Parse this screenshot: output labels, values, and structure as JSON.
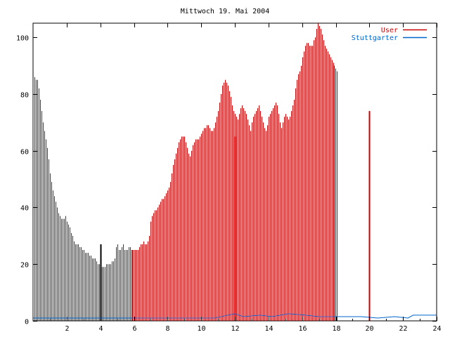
{
  "chart_data": {
    "type": "bar",
    "title": "Mittwoch 19. Mai 2004",
    "xlabel": "",
    "ylabel": "",
    "xlim": [
      0,
      24
    ],
    "ylim": [
      0,
      105
    ],
    "xticks": [
      2,
      4,
      6,
      8,
      10,
      12,
      14,
      16,
      18,
      20,
      22,
      24
    ],
    "yticks": [
      0,
      20,
      40,
      60,
      80,
      100
    ],
    "grid": false,
    "legend_position": "top-right",
    "colors": {
      "user": "#cc0000",
      "stuttgarter": "#0066cc",
      "axis": "#000000"
    },
    "series": [
      {
        "name": "User",
        "kind": "bars",
        "step_minutes": 5,
        "start_hour": 0.083,
        "values": [
          86,
          85,
          85,
          82,
          78,
          74,
          70,
          67,
          64,
          61,
          57,
          52,
          49,
          46,
          44,
          42,
          40,
          38,
          37,
          36,
          36,
          36,
          37,
          35,
          34,
          33,
          31,
          30,
          28,
          27,
          27,
          27,
          26,
          26,
          25,
          25,
          24,
          24,
          24,
          23,
          23,
          22,
          22,
          22,
          21,
          20,
          20,
          19,
          19,
          19,
          19,
          20,
          20,
          20,
          20,
          21,
          21,
          22,
          26,
          27,
          25,
          25,
          26,
          27,
          25,
          25,
          25,
          26,
          26,
          25,
          25,
          25,
          25,
          25,
          25,
          26,
          27,
          27,
          28,
          27,
          27,
          28,
          30,
          35,
          37,
          38,
          39,
          39,
          40,
          41,
          42,
          43,
          43,
          44,
          45,
          46,
          47,
          49,
          52,
          55,
          57,
          59,
          61,
          63,
          64,
          65,
          65,
          65,
          63,
          61,
          59,
          58,
          60,
          62,
          63,
          64,
          64,
          64,
          65,
          66,
          67,
          68,
          68,
          69,
          69,
          68,
          67,
          67,
          68,
          70,
          72,
          74,
          77,
          80,
          83,
          84,
          85,
          84,
          83,
          81,
          79,
          76,
          74,
          73,
          72,
          71,
          73,
          75,
          76,
          75,
          74,
          73,
          71,
          69,
          67,
          70,
          72,
          73,
          74,
          75,
          76,
          74,
          72,
          70,
          68,
          67,
          69,
          72,
          73,
          74,
          75,
          76,
          77,
          76,
          73,
          70,
          68,
          70,
          72,
          73,
          72,
          71,
          72,
          74,
          76,
          78,
          82,
          85,
          87,
          88,
          90,
          93,
          95,
          97,
          98,
          98,
          97,
          97,
          97,
          99,
          100,
          103,
          105,
          104,
          103,
          101,
          99,
          97,
          96,
          95,
          94,
          93,
          92,
          91,
          90,
          89,
          88
        ]
      },
      {
        "name": "Stuttgarter",
        "kind": "line",
        "x": [
          0,
          10.8,
          11.2,
          12.0,
          12.5,
          13.5,
          14.2,
          15.2,
          16.2,
          17.0,
          19.5,
          20.5,
          21.5,
          22.3,
          22.6,
          24
        ],
        "values": [
          1,
          1,
          1.5,
          2.5,
          1.5,
          2,
          1.5,
          2.5,
          2,
          1.5,
          1.5,
          1,
          1.5,
          1,
          2,
          2
        ]
      }
    ],
    "markers": [
      {
        "x": 4,
        "value": 27,
        "color": "#000000"
      },
      {
        "x": 12,
        "value": 65,
        "color": "#cc0000"
      },
      {
        "x": 20,
        "value": 74,
        "color": "#cc0000"
      }
    ]
  }
}
